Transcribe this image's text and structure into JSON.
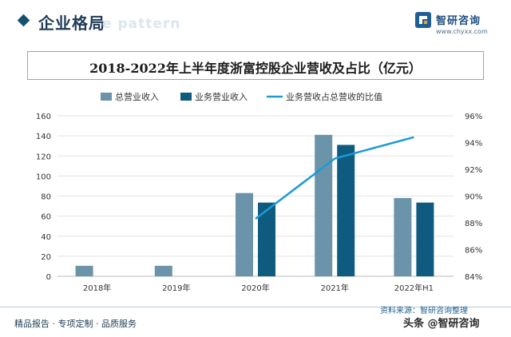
{
  "header": {
    "title": "企业格局",
    "bg_text": "e pattern"
  },
  "logo": {
    "name": "智研咨询",
    "url": "www.chyxx.com",
    "icon": "zhiyan-logo-icon"
  },
  "footer": {
    "left": "精品报告 · 专项定制 · 品质服务",
    "source": "资料来源：智研咨询整理",
    "watermark": "头条 @智研咨询"
  },
  "colors": {
    "total_bar": "#6b93a9",
    "business_bar": "#0f5b80",
    "ratio_line": "#1b9ad6",
    "axis_text": "#333333",
    "grid": "#e3e3e3"
  },
  "chart_data": {
    "type": "bar",
    "title": "2018-2022年上半年度浙富控股企业营收及占比（亿元）",
    "categories": [
      "2018年",
      "2019年",
      "2020年",
      "2021年",
      "2022年H1"
    ],
    "series": [
      {
        "name": "总营业收入",
        "type": "bar",
        "axis": "left",
        "values": [
          10.5,
          10.5,
          83,
          141,
          78
        ]
      },
      {
        "name": "业务营业收入",
        "type": "bar",
        "axis": "left",
        "values": [
          null,
          null,
          73.5,
          131,
          73.5
        ]
      },
      {
        "name": "业务营收占总营收的比值",
        "type": "line",
        "axis": "right",
        "values": [
          null,
          null,
          88.3,
          92.8,
          94.4
        ]
      }
    ],
    "y_left": {
      "min": 0,
      "max": 160,
      "step": 20,
      "ticks": [
        "0",
        "20",
        "40",
        "60",
        "80",
        "100",
        "120",
        "140",
        "160"
      ]
    },
    "y_right": {
      "min": 84,
      "max": 96,
      "step": 2,
      "ticks": [
        "84%",
        "86%",
        "88%",
        "90%",
        "92%",
        "94%",
        "96%"
      ]
    },
    "grid": true,
    "legend_position": "top-center"
  }
}
